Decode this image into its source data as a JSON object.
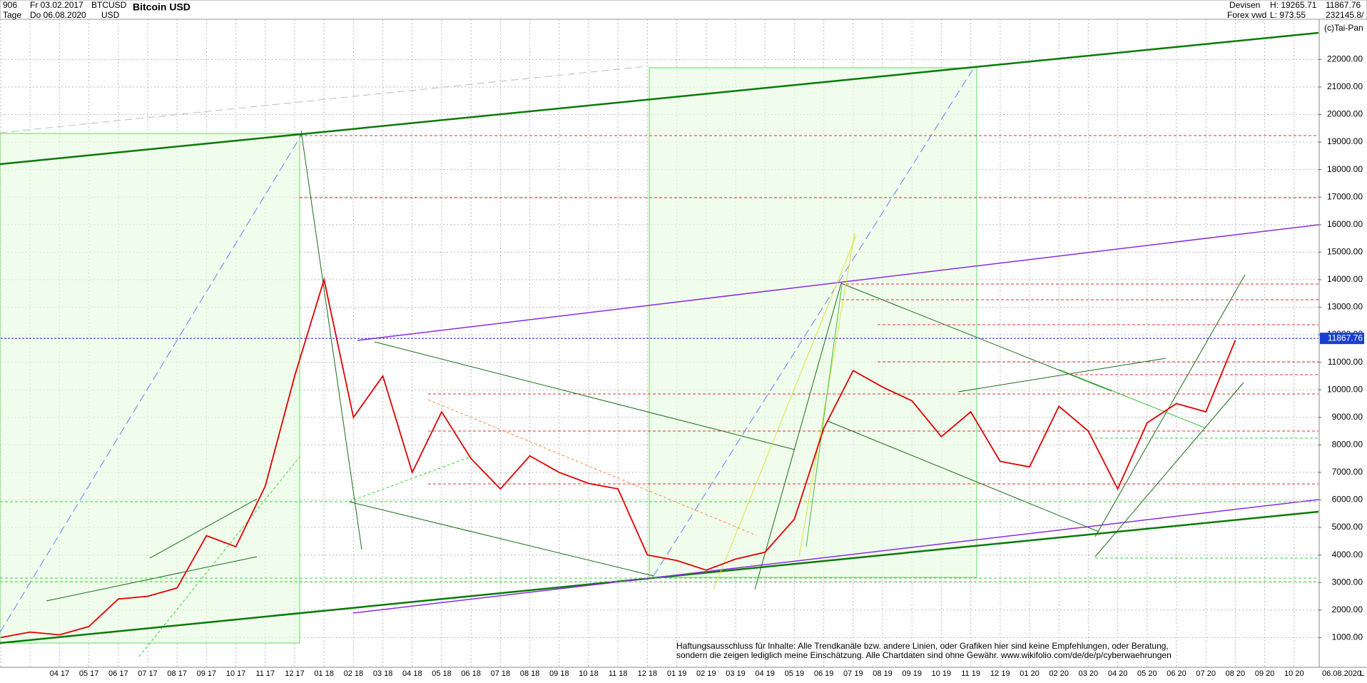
{
  "header": {
    "count": "906",
    "from": "Fr 03.02.2017",
    "period": "Tage",
    "to": "Do 06.08.2020",
    "symbol": "BTCUSD",
    "currency": "USD",
    "name": "Bitcoin USD",
    "market": "Devisen",
    "source": "Forex vwd",
    "high": "H: 19265.71",
    "low": "L: 973.55",
    "volume": "232145.8/",
    "copyright": "(c)Tai-Pan"
  },
  "disclaimer": [
    "Haftungsausschluss für Inhalte: Alle Trendkanäle bzw. andere Linien, oder Grafiken hier sind keine Empfehlungen, oder Beratung,",
    "sondern die zeigen lediglich meine  Einschätzung. Alle Chartdaten sind ohne Gewähr.  www.wikifolio.com/de/de/p/cyberwaehrungen"
  ],
  "end_date": "06.08.2020",
  "axis_mode": "L",
  "chart_data": {
    "type": "line",
    "categories": [
      null,
      null,
      "04 17",
      "05 17",
      "06 17",
      "07 17",
      "08 17",
      "09 17",
      "10 17",
      "11 17",
      "12 17",
      "01 18",
      "02 18",
      "03 18",
      "04 18",
      "05 18",
      "06 18",
      "07 18",
      "08 18",
      "09 18",
      "10 18",
      "11 18",
      "12 18",
      "01 19",
      "02 19",
      "03 19",
      "04 19",
      "05 19",
      "06 19",
      "07 19",
      "08 19",
      "09 19",
      "10 19",
      "11 19",
      "12 19",
      "01 20",
      "02 20",
      "03 20",
      "04 20",
      "05 20",
      "06 20",
      "07 20",
      "08 20",
      "09 20",
      "10 20"
    ],
    "series": [
      {
        "name": "BTCUSD",
        "color": "#e00000",
        "values": [
          1000,
          1200,
          1100,
          1400,
          2400,
          2500,
          2800,
          4700,
          4300,
          6500,
          10500,
          14000,
          9000,
          10500,
          7000,
          9200,
          7500,
          6400,
          7600,
          7000,
          6600,
          6400,
          4000,
          3800,
          3450,
          3850,
          4100,
          5300,
          8600,
          10700,
          10100,
          9600,
          8300,
          9200,
          7400,
          7200,
          9400,
          8500,
          6400,
          8800,
          9500,
          9200,
          11800,
          null,
          null
        ]
      }
    ],
    "last_price": 11867.76,
    "ylim": [
      -80,
      23460
    ],
    "yticks": [
      {
        "value": 1000,
        "label": "1000.00"
      },
      {
        "value": 2000,
        "label": "2000.00"
      },
      {
        "value": 3000,
        "label": "3000.00"
      },
      {
        "value": 4000,
        "label": "4000.00"
      },
      {
        "value": 5000,
        "label": "5000.00"
      },
      {
        "value": 6000,
        "label": "6000.00"
      },
      {
        "value": 7000,
        "label": "7000.00"
      },
      {
        "value": 8000,
        "label": "8000.00"
      },
      {
        "value": 9000,
        "label": "9000.00"
      },
      {
        "value": 10000,
        "label": "10000.00"
      },
      {
        "value": 11000,
        "label": "11000.00"
      },
      {
        "value": 12000,
        "label": "12000.00"
      },
      {
        "value": 13000,
        "label": "13000.00"
      },
      {
        "value": 14000,
        "label": "14000.00"
      },
      {
        "value": 15000,
        "label": "15000.00"
      },
      {
        "value": 16000,
        "label": "16000.00"
      },
      {
        "value": 17000,
        "label": "17000.00"
      },
      {
        "value": 18000,
        "label": "18000.00"
      },
      {
        "value": 19000,
        "label": "19000.00"
      },
      {
        "value": 20000,
        "label": "20000.00"
      },
      {
        "value": 21000,
        "label": "21000.00"
      },
      {
        "value": 22000,
        "label": "22000.00"
      }
    ],
    "grid": true
  }
}
